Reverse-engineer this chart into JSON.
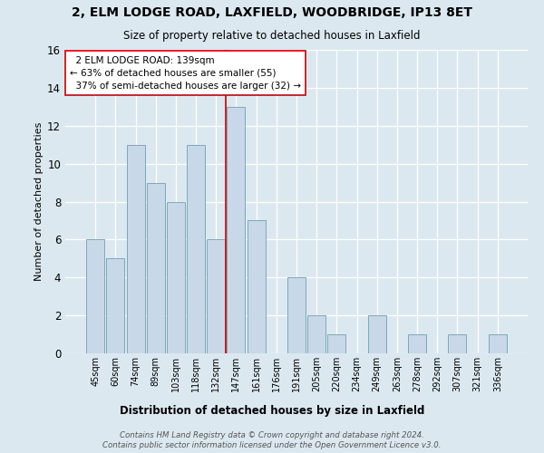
{
  "title_line1": "2, ELM LODGE ROAD, LAXFIELD, WOODBRIDGE, IP13 8ET",
  "title_line2": "Size of property relative to detached houses in Laxfield",
  "xlabel": "Distribution of detached houses by size in Laxfield",
  "ylabel": "Number of detached properties",
  "footer_line1": "Contains HM Land Registry data © Crown copyright and database right 2024.",
  "footer_line2": "Contains public sector information licensed under the Open Government Licence v3.0.",
  "categories": [
    "45sqm",
    "60sqm",
    "74sqm",
    "89sqm",
    "103sqm",
    "118sqm",
    "132sqm",
    "147sqm",
    "161sqm",
    "176sqm",
    "191sqm",
    "205sqm",
    "220sqm",
    "234sqm",
    "249sqm",
    "263sqm",
    "278sqm",
    "292sqm",
    "307sqm",
    "321sqm",
    "336sqm"
  ],
  "values": [
    6,
    5,
    11,
    9,
    8,
    11,
    6,
    13,
    7,
    0,
    4,
    2,
    1,
    0,
    2,
    0,
    1,
    0,
    1,
    0,
    1
  ],
  "bar_color": "#c8d8e8",
  "bar_edge_color": "#7aaabb",
  "ylim": [
    0,
    16
  ],
  "yticks": [
    0,
    2,
    4,
    6,
    8,
    10,
    12,
    14,
    16
  ],
  "property_label": "2 ELM LODGE ROAD: 139sqm",
  "pct_smaller": 63,
  "n_smaller": 55,
  "pct_larger": 37,
  "n_larger": 32,
  "vline_color": "#cc0000",
  "annotation_box_color": "#ffffff",
  "background_color": "#dce8f0",
  "plot_background": "#dce8f0"
}
